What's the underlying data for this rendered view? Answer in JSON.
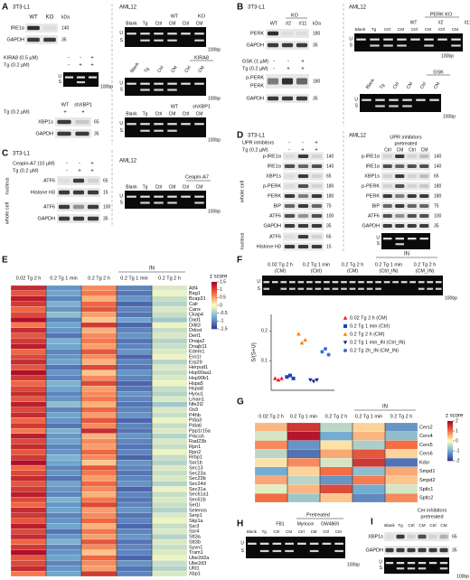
{
  "units": {
    "kda": "kDa",
    "bp": "100bp",
    "u": "U",
    "s": "S"
  },
  "panels": {
    "A": {
      "letter": "A",
      "cell_left": "3T3-L1",
      "cell_right": "AML12",
      "ko_blot": {
        "lanes": [
          "WT",
          "KO"
        ],
        "rows": [
          "IRE1α",
          "GAPDH"
        ],
        "kda": [
          "140",
          "35"
        ]
      },
      "ko_gel": {
        "groups": [
          "WT",
          "KO"
        ],
        "lanes": [
          "Blank",
          "Tg",
          "Ctrl",
          "CM",
          "Ctrl",
          "CM"
        ]
      },
      "kira_treat": [
        {
          "label": "KIRA8 (0.5 µM)",
          "signs": [
            "-",
            "-",
            "+"
          ]
        },
        {
          "label": "Tg (0.2 µM)",
          "signs": [
            "-",
            "+",
            "+"
          ]
        }
      ],
      "kira_gel": {
        "group": "KIRA8",
        "lanes": [
          "Blank",
          "Tg",
          "Ctrl",
          "CM",
          "Ctrl",
          "CM"
        ]
      },
      "sh_blot": {
        "lanes": [
          "WT",
          "shXBP1"
        ],
        "treat": {
          "label": "Tg (0.2 µM)",
          "signs": [
            "+",
            "+"
          ]
        },
        "rows": [
          "XBP1s",
          "GAPDH"
        ],
        "kda": [
          "65",
          "35"
        ]
      },
      "sh_gel": {
        "groups": [
          "WT",
          "shXBP1"
        ],
        "lanes": [
          "Blank",
          "Tg",
          "Ctrl",
          "CM",
          "Ctrl",
          "CM"
        ]
      }
    },
    "B": {
      "letter": "B",
      "cell_left": "3T3-L1",
      "cell_right": "AML12",
      "ko_blot": {
        "group": "KO",
        "lanes": [
          "WT",
          "#2",
          "#11"
        ],
        "rows": [
          "PERK",
          "GAPDH"
        ],
        "kda": [
          "180",
          "35"
        ]
      },
      "gsk_treat": [
        {
          "label": "GSK (1 µM)",
          "signs": [
            "-",
            "-",
            "+"
          ]
        },
        {
          "label": "Tg (0.2 µM)",
          "signs": [
            "-",
            "+",
            "+"
          ]
        }
      ],
      "gsk_blot": {
        "rows": [
          "p-PERK",
          "PERK",
          "GAPDH"
        ],
        "kda": [
          "180",
          "35"
        ]
      },
      "ko_gel": {
        "group": "PERK KO",
        "groups": [
          "WT",
          "#2",
          "#11"
        ],
        "lanes": [
          "Blank",
          "Tg",
          "Ctrl",
          "CM",
          "Ctrl",
          "CM",
          "Ctrl",
          "CM"
        ]
      },
      "gsk_gel": {
        "group": "GSK",
        "lanes": [
          "Blank",
          "Tg",
          "Ctrl",
          "CM",
          "Ctrl",
          "CM"
        ]
      }
    },
    "C": {
      "letter": "C",
      "cell_left": "3T3-L1",
      "cell_right": "AML12",
      "treat": [
        {
          "label": "Ceapin-A7 (10 µM)",
          "signs": [
            "-",
            "-",
            "+"
          ]
        },
        {
          "label": "Tg (0.2 µM)",
          "signs": [
            "-",
            "+",
            "+"
          ]
        }
      ],
      "nucleus": {
        "label": "nucleus",
        "rows": [
          "ATF6",
          "Histone H3"
        ],
        "kda": [
          "65",
          "15"
        ]
      },
      "whole": {
        "label": "whole cell",
        "rows": [
          "ATF6",
          "GAPDH"
        ],
        "kda": [
          "100",
          "35"
        ]
      },
      "gel": {
        "group": "Ceapin-A7",
        "lanes": [
          "Blank",
          "Tg",
          "Ctrl",
          "CM",
          "Ctrl",
          "CM"
        ]
      }
    },
    "D": {
      "letter": "D",
      "cell_left": "3T3-L1",
      "cell_right": "AML12",
      "treat": [
        {
          "label": "UPR inhibitors",
          "signs": [
            "-",
            "-",
            "+"
          ]
        },
        {
          "label": "Tg (0.2 µM)",
          "signs": [
            "-",
            "+",
            "+"
          ]
        }
      ],
      "whole_label": "whole cell",
      "nucleus_label": "nucleus",
      "rows": [
        "p-IRE1α",
        "IRE1α",
        "XBP1s",
        "p-PERK",
        "PERK",
        "BiP",
        "ATF6",
        "GAPDH"
      ],
      "kda": [
        "140",
        "140",
        "65",
        "180",
        "180",
        "75",
        "100",
        "35"
      ],
      "nucleus_rows": [
        "ATF6",
        "Histone H3"
      ],
      "nucleus_kda": [
        "65",
        "15"
      ],
      "right": {
        "title": "UPR inhibitors",
        "title2": "pretreated",
        "lanes": [
          "Ctrl",
          "CM",
          "Ctrl",
          "CM"
        ]
      }
    },
    "E": {
      "letter": "E",
      "groups": [
        "0.02 Tg 2 h",
        "0.2 Tg 1 min",
        "0.2 Tg 2 h",
        "0.2 Tg 1 min",
        "0.2 Tg 2 h"
      ],
      "in_label": "IN",
      "legend_title": "z score",
      "zlim": [
        -1.5,
        1.5
      ],
      "zticks": [
        1.5,
        1,
        0.5,
        0,
        -0.5,
        -1,
        -1.5
      ],
      "genes": [
        "Atf4",
        "Bag1",
        "Bcap31",
        "Calr",
        "Canx",
        "Ckap4",
        "Dad1",
        "Ddit3",
        "Ddost",
        "Derl1",
        "Dnaja2",
        "Dnajb11",
        "Edem1",
        "Ero1l",
        "Erp29",
        "Herpud1",
        "Hsp90aa1",
        "Hsp90b1",
        "Hspa5",
        "Hspa8",
        "Hyou1",
        "Lman1",
        "Nfe2l2",
        "Os9",
        "P4hb",
        "Pdia3",
        "Pdia6",
        "Ppp1r15a",
        "Prkcsh",
        "Rad23b",
        "Rpn1",
        "Rpn2",
        "Rrbp1",
        "Sar1b",
        "Sec13",
        "Sec23a",
        "Sec23b",
        "Sec24d",
        "Sec31a",
        "Sec61a1",
        "Sec61b",
        "Sel1l",
        "Selenos",
        "Serp1",
        "Skp1a",
        "Ssr3",
        "Ssr4",
        "Stt3a",
        "Stt3b",
        "Syvn1",
        "Tram1",
        "Ube2d2a",
        "Ube2d3",
        "Ufd1",
        "Xbp1"
      ],
      "values": [
        [
          1.2,
          -0.9,
          0.6,
          -1.0,
          -0.2
        ],
        [
          0.9,
          -0.8,
          0.7,
          -1.1,
          -0.1
        ],
        [
          1.3,
          -1.0,
          0.4,
          -0.9,
          -0.3
        ],
        [
          1.1,
          -0.7,
          0.8,
          -1.2,
          -0.4
        ],
        [
          0.8,
          -0.9,
          0.9,
          -1.0,
          -0.2
        ],
        [
          1.0,
          -0.6,
          0.5,
          -1.1,
          -0.3
        ],
        [
          1.4,
          -1.0,
          0.3,
          -0.8,
          -0.5
        ],
        [
          0.7,
          -0.8,
          1.1,
          -1.2,
          -0.1
        ],
        [
          1.2,
          -0.9,
          0.4,
          -1.0,
          -0.3
        ],
        [
          0.9,
          -1.1,
          0.6,
          -0.9,
          -0.2
        ],
        [
          1.1,
          -0.7,
          0.7,
          -1.1,
          -0.4
        ],
        [
          1.3,
          -0.8,
          0.5,
          -1.0,
          -0.3
        ],
        [
          0.8,
          -1.0,
          0.9,
          -0.9,
          -0.2
        ],
        [
          1.0,
          -0.9,
          0.6,
          -1.2,
          -0.1
        ],
        [
          1.2,
          -0.8,
          0.4,
          -1.0,
          -0.4
        ],
        [
          0.9,
          -1.1,
          1.0,
          -1.1,
          -0.2
        ],
        [
          1.4,
          -0.9,
          0.3,
          -0.9,
          -0.3
        ],
        [
          1.1,
          -1.0,
          0.6,
          -1.0,
          -0.2
        ],
        [
          0.8,
          -0.7,
          1.0,
          -1.2,
          -0.1
        ],
        [
          1.0,
          -0.8,
          0.5,
          -1.1,
          -0.3
        ],
        [
          1.2,
          -1.0,
          0.6,
          -0.9,
          -0.4
        ],
        [
          0.9,
          -0.9,
          0.7,
          -1.0,
          -0.2
        ],
        [
          1.3,
          -0.6,
          0.4,
          -1.1,
          -0.5
        ],
        [
          1.0,
          -1.0,
          0.8,
          -1.0,
          -0.2
        ],
        [
          1.2,
          -0.8,
          0.5,
          -0.9,
          -0.3
        ],
        [
          0.8,
          -0.9,
          0.9,
          -1.2,
          -0.1
        ],
        [
          1.1,
          -1.1,
          0.6,
          -1.0,
          -0.3
        ],
        [
          0.7,
          -0.7,
          1.2,
          -1.1,
          -0.2
        ],
        [
          1.3,
          -0.9,
          0.4,
          -0.9,
          -0.4
        ],
        [
          1.0,
          -0.8,
          0.6,
          -1.0,
          -0.2
        ],
        [
          1.2,
          -1.0,
          0.5,
          -1.1,
          -0.3
        ],
        [
          0.9,
          -0.9,
          0.8,
          -1.0,
          -0.1
        ],
        [
          1.1,
          -0.7,
          0.6,
          -1.2,
          -0.3
        ],
        [
          1.4,
          -0.8,
          0.3,
          -0.9,
          -0.4
        ],
        [
          0.8,
          -1.0,
          0.9,
          -1.0,
          -0.2
        ],
        [
          1.0,
          -0.9,
          0.7,
          -1.1,
          -0.3
        ],
        [
          1.2,
          -1.1,
          0.5,
          -1.0,
          -0.2
        ],
        [
          0.9,
          -0.8,
          0.8,
          -0.9,
          -0.4
        ],
        [
          1.1,
          -0.9,
          0.6,
          -1.2,
          -0.1
        ],
        [
          1.3,
          -1.0,
          0.4,
          -1.0,
          -0.3
        ],
        [
          1.0,
          -0.7,
          0.7,
          -1.1,
          -0.2
        ],
        [
          0.8,
          -0.9,
          1.0,
          -1.0,
          -0.3
        ],
        [
          1.2,
          -0.8,
          0.5,
          -0.9,
          -0.4
        ],
        [
          1.1,
          -1.0,
          0.6,
          -1.1,
          -0.2
        ],
        [
          0.9,
          -0.9,
          0.8,
          -1.0,
          -0.1
        ],
        [
          1.3,
          -0.8,
          0.4,
          -1.2,
          -0.3
        ],
        [
          1.0,
          -1.1,
          0.7,
          -1.0,
          -0.2
        ],
        [
          1.2,
          -0.9,
          0.5,
          -0.9,
          -0.4
        ],
        [
          0.8,
          -0.7,
          0.9,
          -1.1,
          -0.2
        ],
        [
          1.1,
          -1.0,
          0.6,
          -1.0,
          -0.3
        ],
        [
          1.4,
          -0.9,
          0.3,
          -1.0,
          -0.2
        ],
        [
          0.9,
          -0.8,
          0.8,
          -1.2,
          -0.1
        ],
        [
          1.0,
          -1.0,
          0.6,
          -0.9,
          -0.3
        ],
        [
          1.2,
          -0.9,
          0.5,
          -1.1,
          -0.4
        ],
        [
          0.7,
          -0.8,
          1.1,
          -1.0,
          -0.2
        ]
      ]
    },
    "F": {
      "letter": "F",
      "in_label": "IN",
      "lanes": [
        {
          "label": "0.02 Tg 2 h",
          "sub": "(CM)"
        },
        {
          "label": "0.2 Tg 1 min",
          "sub": "(Ctrl)"
        },
        {
          "label": "0.2 Tg 2 h",
          "sub": "(CM)"
        },
        {
          "label": "0.2 Tg 1 min",
          "sub": "(Ctrl_IN)"
        },
        {
          "label": "0.2 Tg 2 h",
          "sub": "(CM_IN)"
        }
      ],
      "chart": {
        "type": "scatter",
        "y_label": "S/(S+U)",
        "ylim": [
          0,
          0.25
        ],
        "yticks": [
          0.1,
          0.2
        ],
        "series": [
          {
            "name": "0.02 Tg 2 h (CM)",
            "color": "#e41a1c",
            "marker": "triangle-up",
            "values": [
              0.04,
              0.035,
              0.04
            ]
          },
          {
            "name": "0.2 Tg 1 min (Ctrl)",
            "color": "#2040c0",
            "marker": "square",
            "values": [
              0.045,
              0.05,
              0.04
            ]
          },
          {
            "name": "0.2 Tg 2 h (CM)",
            "color": "#ff7f00",
            "marker": "triangle-up",
            "values": [
              0.19,
              0.16,
              0.17
            ]
          },
          {
            "name": "0.2 Tg 1 min_IN (Ctrl_IN)",
            "color": "#1a2a8a",
            "marker": "triangle-down",
            "values": [
              0.035,
              0.03,
              0.035
            ]
          },
          {
            "name": "0.2 Tg 2h_IN (CM_IN)",
            "color": "#3a6fd8",
            "marker": "circle",
            "values": [
              0.13,
              0.14,
              0.12
            ]
          }
        ]
      }
    },
    "G": {
      "letter": "G",
      "groups": [
        "0.02 Tg 2 h",
        "0.2 Tg 1 min",
        "0.2 Tg 2 h",
        "0.2 Tg 1 min",
        "0.2 Tg 2 h"
      ],
      "in_label": "IN",
      "legend_title": "z score",
      "zlim": [
        -2,
        2
      ],
      "zticks": [
        2,
        1,
        0,
        -1,
        -2
      ],
      "genes": [
        "Cers2",
        "Cers4",
        "Cers5",
        "Cers6",
        "Kdsr",
        "Smpd1",
        "Smpd2",
        "Sptlc1",
        "Sptlc2"
      ],
      "values": [
        [
          0.5,
          1.5,
          -0.5,
          0.3,
          -1.2
        ],
        [
          -0.3,
          1.8,
          -1.0,
          0.5,
          -0.8
        ],
        [
          0.8,
          -1.2,
          0.2,
          -0.6,
          1.0
        ],
        [
          -0.5,
          -1.5,
          0.6,
          1.2,
          0.3
        ],
        [
          0.2,
          0.8,
          -0.3,
          1.5,
          -1.5
        ],
        [
          -1.0,
          0.3,
          1.0,
          -0.8,
          0.6
        ],
        [
          0.6,
          -0.5,
          -1.2,
          0.9,
          0.4
        ],
        [
          -0.2,
          0.5,
          1.3,
          -1.0,
          -0.3
        ],
        [
          1.0,
          -0.7,
          0.4,
          -1.3,
          0.8
        ]
      ]
    },
    "H": {
      "letter": "H",
      "title": "Pretreated",
      "groups": [
        "FB1",
        "Myriocin",
        "GW4869"
      ],
      "lanes": [
        "Blank",
        "Tg",
        "Ctrl",
        "CM",
        "Ctrl",
        "CM",
        "Ctrl",
        "CM"
      ]
    },
    "I": {
      "letter": "I",
      "title": "Cer inhibitors",
      "title2": "pretreated",
      "lanes": [
        "Blank",
        "Tg",
        "Ctrl",
        "CM",
        "Ctrl",
        "CM"
      ],
      "rows": [
        "XBP1s",
        "GAPDH"
      ],
      "kda": [
        "65",
        "35"
      ]
    }
  }
}
